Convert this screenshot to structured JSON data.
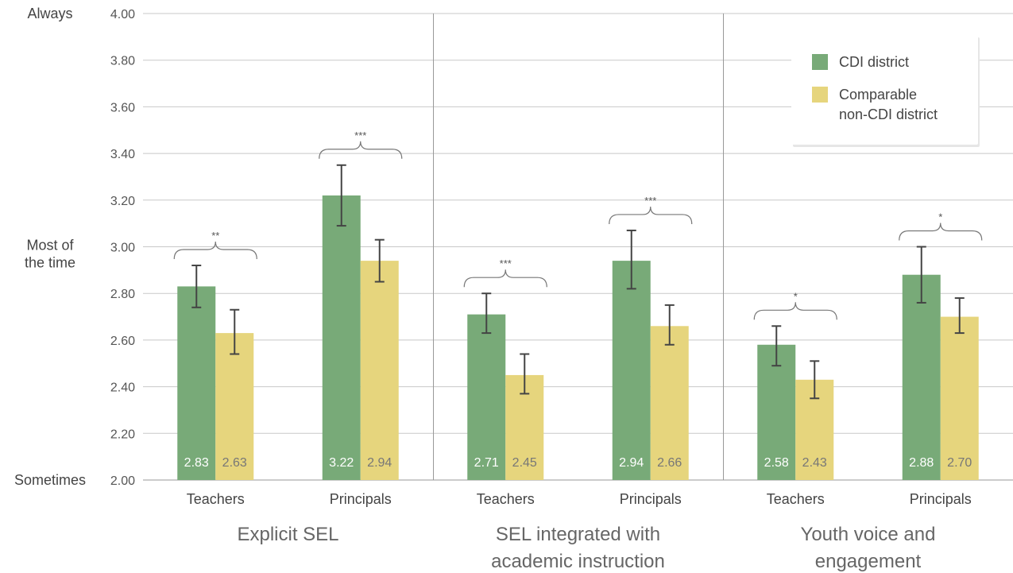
{
  "chart_data": {
    "type": "bar",
    "ylim": [
      2.0,
      4.0
    ],
    "y_ticks": [
      "2.00",
      "2.20",
      "2.40",
      "2.60",
      "2.80",
      "3.00",
      "3.20",
      "3.40",
      "3.60",
      "3.80",
      "4.00"
    ],
    "y_anchor_labels": [
      {
        "value": 4.0,
        "lines": [
          "Always"
        ]
      },
      {
        "value": 2.97,
        "lines": [
          "Most of",
          "the time"
        ]
      },
      {
        "value": 2.0,
        "lines": [
          "Sometimes"
        ]
      }
    ],
    "grid": true,
    "legend_position": "top-right",
    "series": [
      {
        "name": "CDI district",
        "color": "#78aa78"
      },
      {
        "name": "Comparable non-CDI district",
        "color": "#e6d57d"
      }
    ],
    "groups": [
      {
        "label_lines": [
          "Explicit SEL"
        ],
        "categories": [
          {
            "label": "Teachers",
            "values": [
              2.83,
              2.63
            ],
            "value_labels": [
              "2.83",
              "2.63"
            ],
            "error": [
              [
                2.74,
                2.92
              ],
              [
                2.54,
                2.73
              ]
            ],
            "significance": "**"
          },
          {
            "label": "Principals",
            "values": [
              3.22,
              2.94
            ],
            "value_labels": [
              "3.22",
              "2.94"
            ],
            "error": [
              [
                3.09,
                3.35
              ],
              [
                2.85,
                3.03
              ]
            ],
            "significance": "***"
          }
        ]
      },
      {
        "label_lines": [
          "SEL integrated with",
          "academic instruction"
        ],
        "categories": [
          {
            "label": "Teachers",
            "values": [
              2.71,
              2.45
            ],
            "value_labels": [
              "2.71",
              "2.45"
            ],
            "error": [
              [
                2.63,
                2.8
              ],
              [
                2.37,
                2.54
              ]
            ],
            "significance": "***"
          },
          {
            "label": "Principals",
            "values": [
              2.94,
              2.66
            ],
            "value_labels": [
              "2.94",
              "2.66"
            ],
            "error": [
              [
                2.82,
                3.07
              ],
              [
                2.58,
                2.75
              ]
            ],
            "significance": "***"
          }
        ]
      },
      {
        "label_lines": [
          "Youth voice and",
          "engagement"
        ],
        "categories": [
          {
            "label": "Teachers",
            "values": [
              2.58,
              2.43
            ],
            "value_labels": [
              "2.58",
              "2.43"
            ],
            "error": [
              [
                2.49,
                2.66
              ],
              [
                2.35,
                2.51
              ]
            ],
            "significance": "*"
          },
          {
            "label": "Principals",
            "values": [
              2.88,
              2.7
            ],
            "value_labels": [
              "2.88",
              "2.70"
            ],
            "error": [
              [
                2.76,
                3.0
              ],
              [
                2.63,
                2.78
              ]
            ],
            "significance": "*"
          }
        ]
      }
    ]
  },
  "legend": {
    "items": [
      {
        "lines": [
          "CDI district"
        ],
        "color": "#78aa78"
      },
      {
        "lines": [
          "Comparable",
          "non-CDI district"
        ],
        "color": "#e6d57d"
      }
    ]
  }
}
